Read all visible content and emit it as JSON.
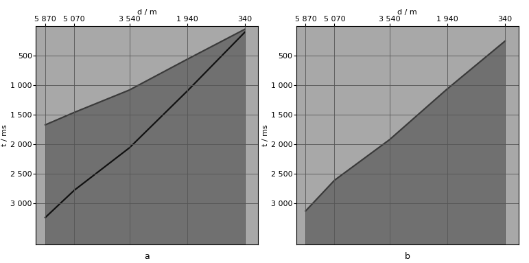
{
  "chart_data": [
    {
      "type": "line",
      "title": "a",
      "x_label": "d / m",
      "y_label": "t / ms",
      "x": [
        5870,
        5070,
        3540,
        1940,
        340
      ],
      "xlim": [
        6130,
        -30
      ],
      "xticks": [
        {
          "value": 5870,
          "label": "5 870"
        },
        {
          "value": 5070,
          "label": "5 070"
        },
        {
          "value": 3540,
          "label": "3 540"
        },
        {
          "value": 1940,
          "label": "1 940"
        },
        {
          "value": 340,
          "label": "340"
        }
      ],
      "ylim": [
        3700,
        0
      ],
      "yticks": [
        {
          "value": 500,
          "label": "500"
        },
        {
          "value": 1000,
          "label": "1 000"
        },
        {
          "value": 1500,
          "label": "1 500"
        },
        {
          "value": 2000,
          "label": "2 000"
        },
        {
          "value": 2500,
          "label": "2 500"
        },
        {
          "value": 3000,
          "label": "3 000"
        }
      ],
      "grid": true,
      "series": [
        {
          "color": "#3a3a3a",
          "line_style": "solid",
          "values": [
            1670,
            1460,
            1080,
            560,
            50
          ]
        },
        {
          "color": "#111111",
          "line_style": "solid",
          "values": [
            3240,
            2780,
            2060,
            1100,
            100
          ]
        }
      ]
    },
    {
      "type": "line",
      "title": "b",
      "x_label": "d / m",
      "y_label": "t / ms",
      "x": [
        5870,
        5070,
        3540,
        1940,
        340
      ],
      "xlim": [
        6130,
        -30
      ],
      "xticks": [
        {
          "value": 5870,
          "label": "5 870"
        },
        {
          "value": 5070,
          "label": "5 070"
        },
        {
          "value": 3540,
          "label": "3 540"
        },
        {
          "value": 1940,
          "label": "1 940"
        },
        {
          "value": 340,
          "label": "340"
        }
      ],
      "ylim": [
        3700,
        0
      ],
      "yticks": [
        {
          "value": 500,
          "label": "500"
        },
        {
          "value": 1000,
          "label": "1 000"
        },
        {
          "value": 1500,
          "label": "1 500"
        },
        {
          "value": 2000,
          "label": "2 000"
        },
        {
          "value": 2500,
          "label": "2 500"
        },
        {
          "value": 3000,
          "label": "3 000"
        }
      ],
      "grid": true,
      "series": [
        {
          "color": "#3a3a3a",
          "line_style": "solid",
          "values": [
            3130,
            2610,
            1920,
            1060,
            250
          ]
        }
      ]
    }
  ]
}
